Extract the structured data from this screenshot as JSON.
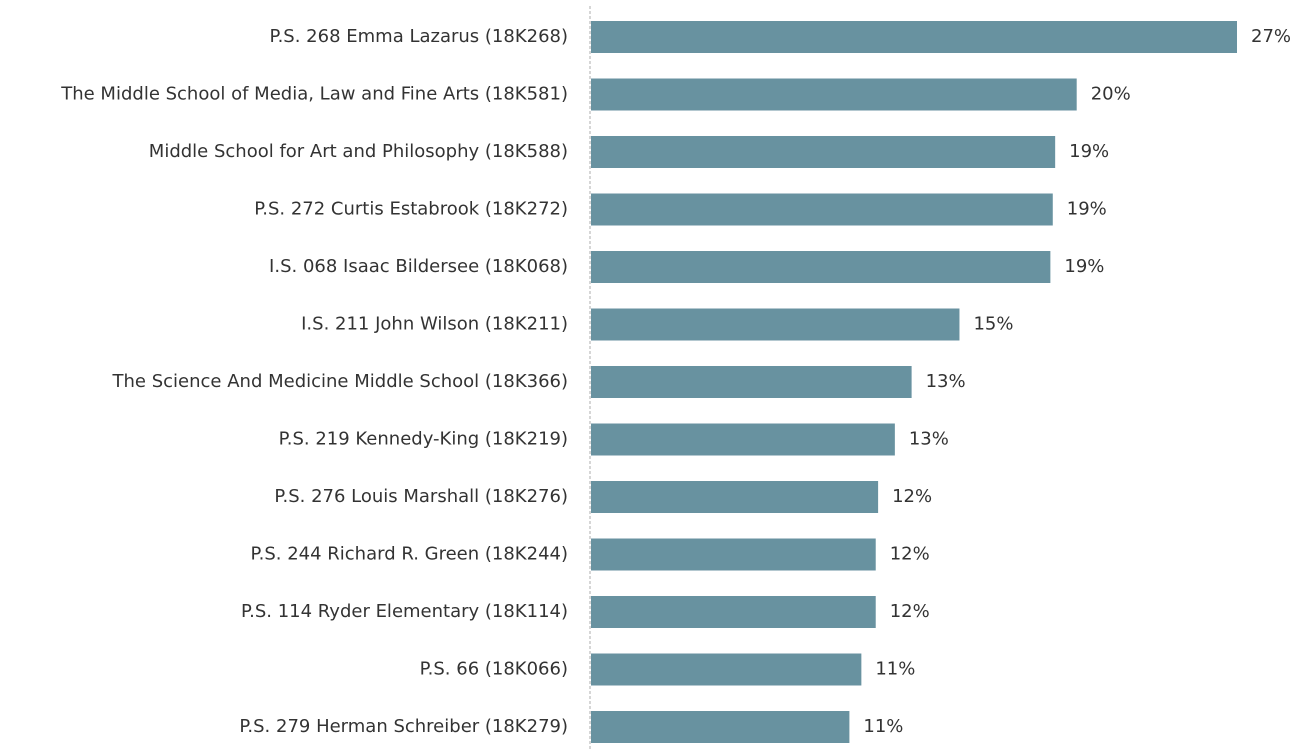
{
  "chart_data": {
    "type": "bar",
    "orientation": "horizontal",
    "categories": [
      "P.S. 268 Emma Lazarus (18K268)",
      "The Middle School of Media, Law and Fine Arts (18K581)",
      "Middle School for Art and Philosophy (18K588)",
      "P.S. 272 Curtis Estabrook (18K272)",
      "I.S. 068 Isaac Bildersee (18K068)",
      "I.S. 211 John Wilson (18K211)",
      "The Science And Medicine Middle School (18K366)",
      "P.S. 219 Kennedy-King (18K219)",
      "P.S. 276 Louis Marshall (18K276)",
      "P.S. 244 Richard R. Green (18K244)",
      "P.S. 114 Ryder Elementary (18K114)",
      "P.S. 66 (18K066)",
      "P.S. 279 Herman Schreiber (18K279)"
    ],
    "values": [
      27,
      20.3,
      19.4,
      19.3,
      19.2,
      15.4,
      13.4,
      12.7,
      12.0,
      11.9,
      11.9,
      11.3,
      10.8
    ],
    "value_labels": [
      "27%",
      "20%",
      "19%",
      "19%",
      "19%",
      "15%",
      "13%",
      "13%",
      "12%",
      "12%",
      "12%",
      "11%",
      "11%"
    ],
    "color": "#6892a0"
  }
}
